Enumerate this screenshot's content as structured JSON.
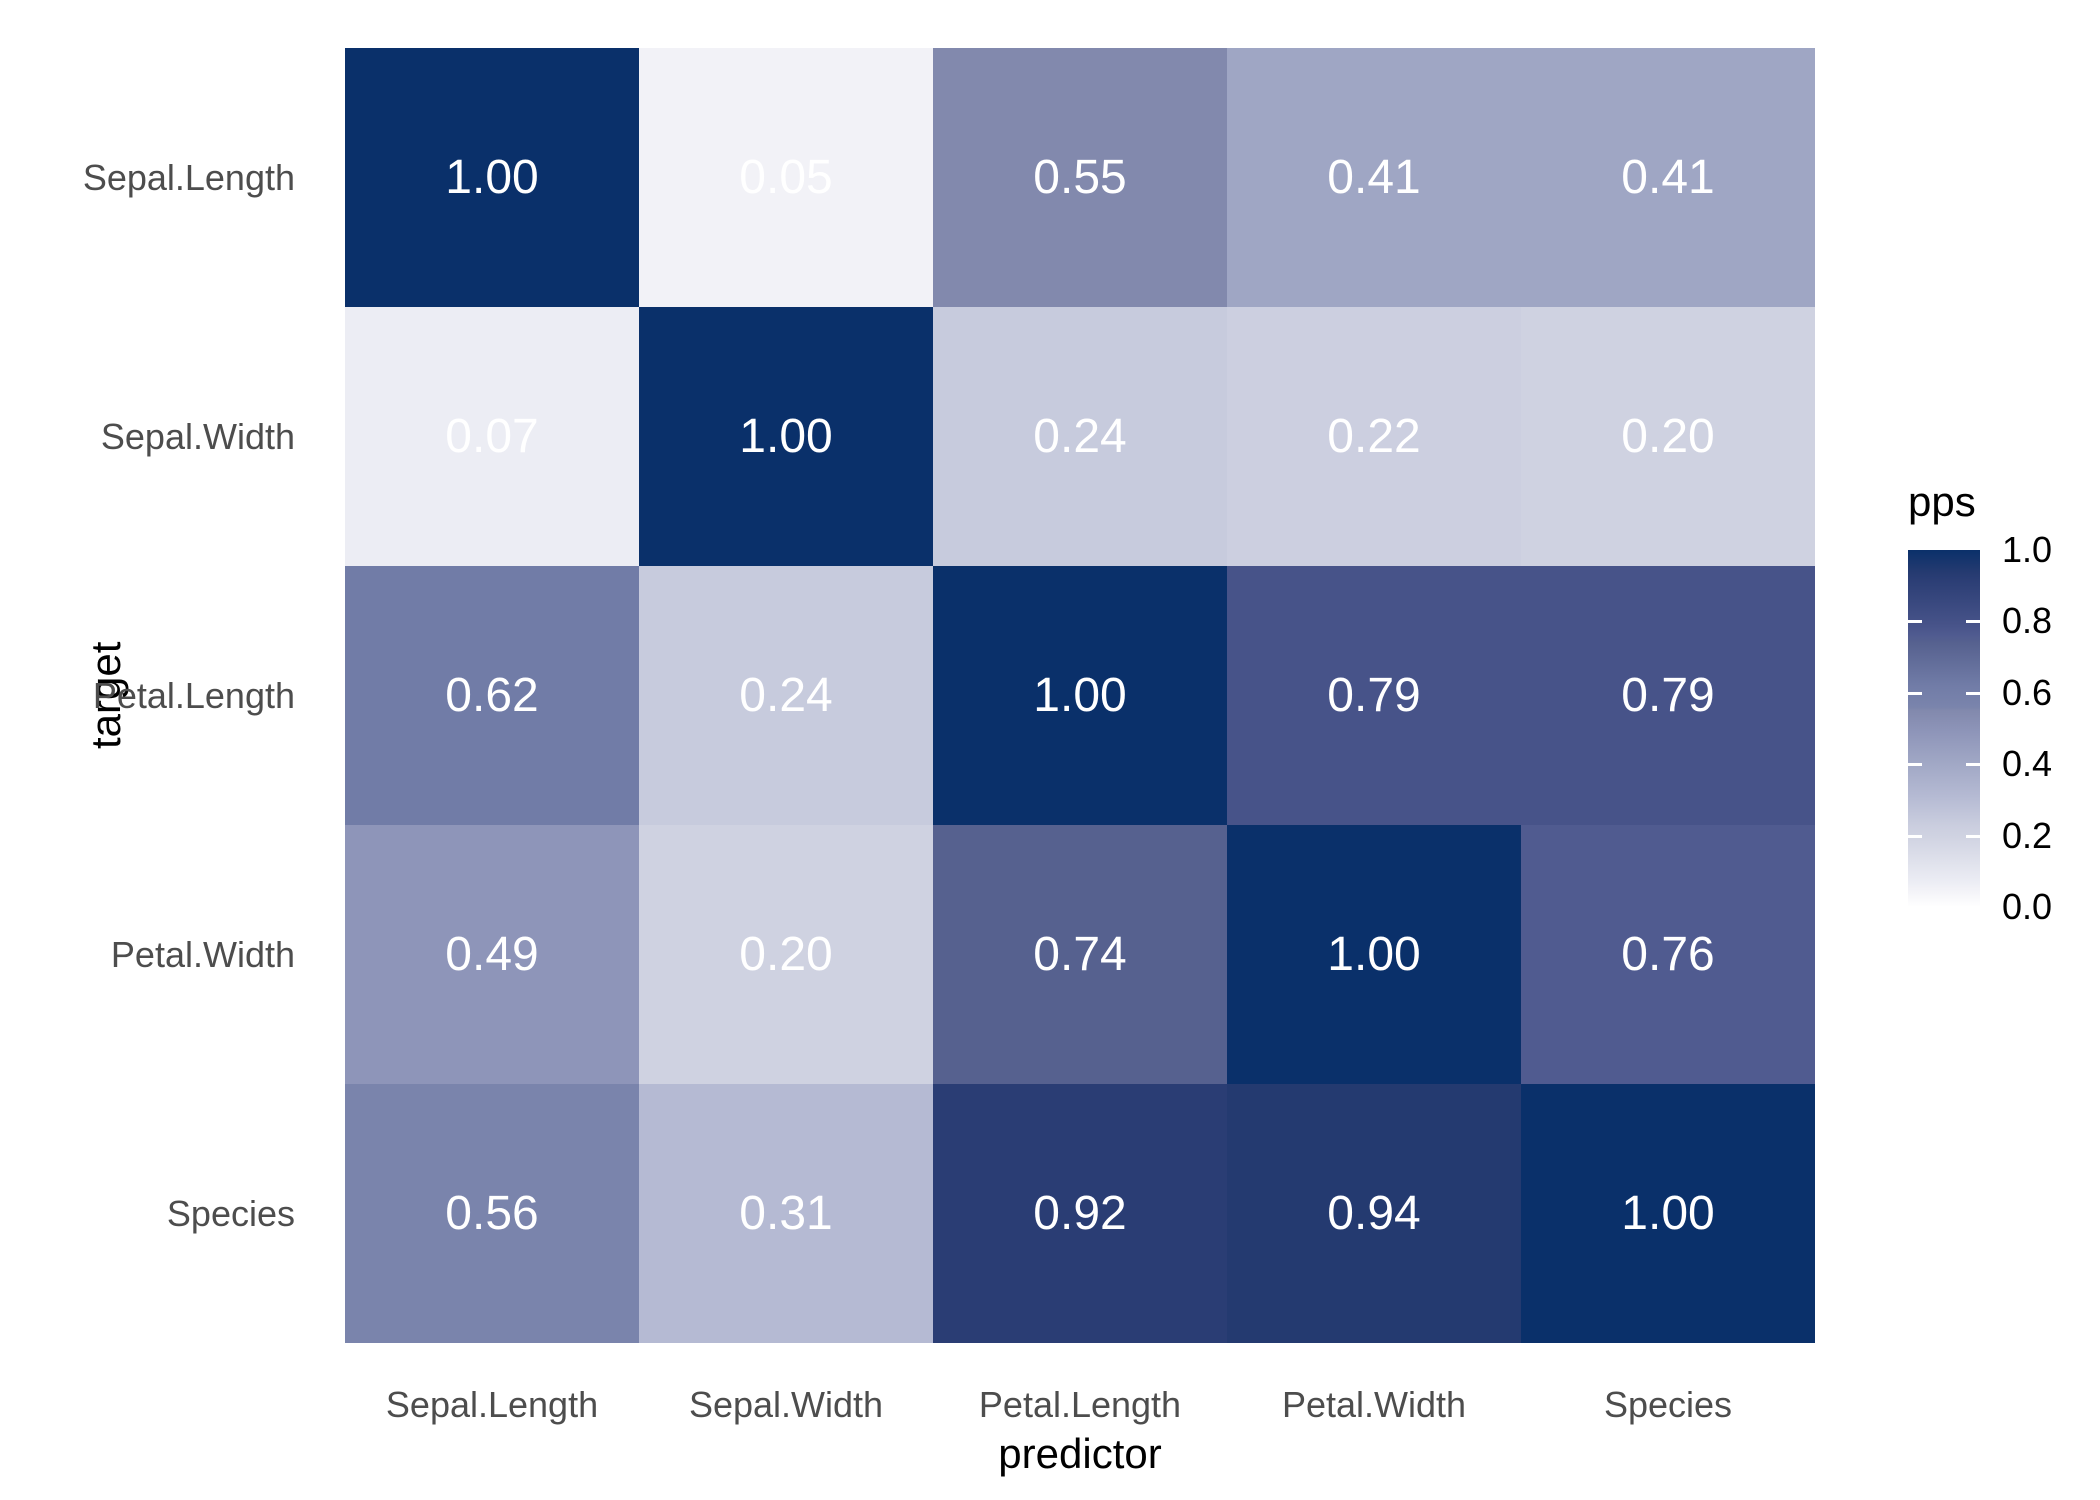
{
  "chart_data": {
    "type": "heatmap",
    "title": "",
    "xlabel": "predictor",
    "ylabel": "target",
    "x_categories": [
      "Sepal.Length",
      "Sepal.Width",
      "Petal.Length",
      "Petal.Width",
      "Species"
    ],
    "y_categories": [
      "Sepal.Length",
      "Sepal.Width",
      "Petal.Length",
      "Petal.Width",
      "Species"
    ],
    "values": [
      [
        1.0,
        0.05,
        0.55,
        0.41,
        0.41
      ],
      [
        0.07,
        1.0,
        0.24,
        0.22,
        0.2
      ],
      [
        0.62,
        0.24,
        1.0,
        0.79,
        0.79
      ],
      [
        0.49,
        0.2,
        0.74,
        1.0,
        0.76
      ],
      [
        0.56,
        0.31,
        0.92,
        0.94,
        1.0
      ]
    ],
    "value_decimals": 2,
    "cell_text_color": "#ffffff",
    "tick_label_color": "#4d4d4d",
    "axis_title_color": "#000000",
    "background_color": "#ffffff",
    "grid": false,
    "legend": {
      "title": "pps",
      "position": "right",
      "ticks": [
        "1.0",
        "0.8",
        "0.6",
        "0.4",
        "0.2",
        "0.0"
      ],
      "range": [
        0.0,
        1.0
      ]
    },
    "color_scale": {
      "low": "#ffffff",
      "high": "#0a306a",
      "stops": [
        {
          "v": 0.0,
          "c": "#ffffff"
        },
        {
          "v": 0.05,
          "c": "#f2f2f7"
        },
        {
          "v": 0.07,
          "c": "#ecedf4"
        },
        {
          "v": 0.2,
          "c": "#cfd2e1"
        },
        {
          "v": 0.22,
          "c": "#cccfe0"
        },
        {
          "v": 0.24,
          "c": "#c7cbdd"
        },
        {
          "v": 0.31,
          "c": "#b5bad3"
        },
        {
          "v": 0.41,
          "c": "#9fa6c4"
        },
        {
          "v": 0.49,
          "c": "#8e95b9"
        },
        {
          "v": 0.55,
          "c": "#8289ad"
        },
        {
          "v": 0.56,
          "c": "#7a84ac"
        },
        {
          "v": 0.62,
          "c": "#717ca7"
        },
        {
          "v": 0.74,
          "c": "#56618f"
        },
        {
          "v": 0.76,
          "c": "#505b90"
        },
        {
          "v": 0.79,
          "c": "#475389"
        },
        {
          "v": 0.92,
          "c": "#2a3d74"
        },
        {
          "v": 0.94,
          "c": "#243a70"
        },
        {
          "v": 1.0,
          "c": "#0a306a"
        }
      ]
    }
  }
}
